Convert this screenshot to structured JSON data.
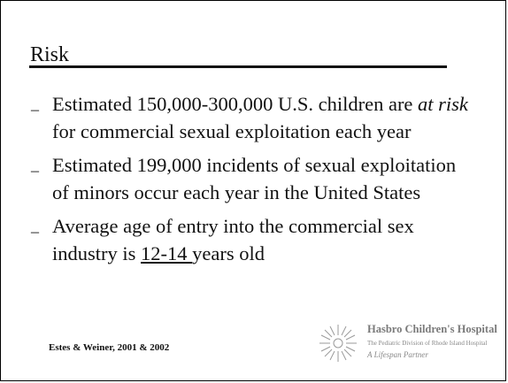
{
  "slide": {
    "title": "Risk",
    "bullets": [
      {
        "marker": "_",
        "pre": "Estimated 150,000-300,000 U.S. children are ",
        "em": "at risk",
        "post": " for commercial sexual exploitation each year"
      },
      {
        "marker": "_",
        "text": "Estimated 199,000 incidents of sexual exploitation of minors occur each year in the United States"
      },
      {
        "marker": "_",
        "pre": "Average age of entry into the commercial sex industry is ",
        "underlined": "12-14 ",
        "post": "years old"
      }
    ],
    "citation": "Estes & Weiner, 2001 & 2002",
    "logo": {
      "name": "Hasbro Children's Hospital",
      "subtitle": "The Pediatric Division of Rhode Island Hospital",
      "tagline": "A Lifespan Partner",
      "icon": "sunburst-icon"
    }
  }
}
